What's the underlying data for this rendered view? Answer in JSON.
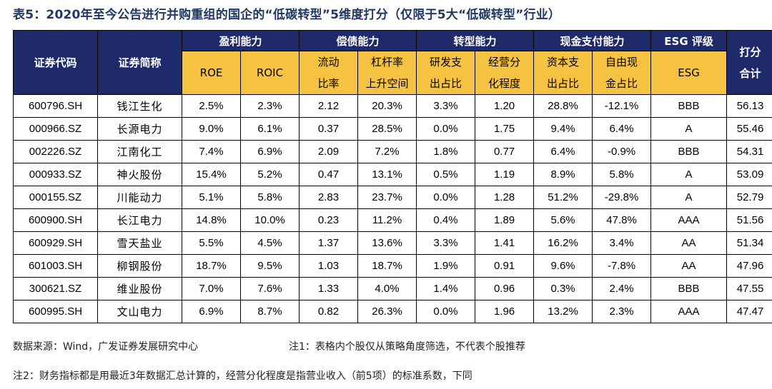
{
  "title": "表5：2020年至今公告进行并购重组的国企的“低碳转型”5维度打分（仅限于5大“低碳转型”行业）",
  "header": {
    "code": "证券代码",
    "name": "证券简称",
    "groups": [
      "盈利能力",
      "偿债能力",
      "转型能力",
      "现金支付能力",
      "ESG 评级"
    ],
    "total_line1": "打分",
    "total_line2": "合计",
    "sub": [
      {
        "l1": "ROE",
        "l2": ""
      },
      {
        "l1": "ROIC",
        "l2": ""
      },
      {
        "l1": "流动",
        "l2": "比率"
      },
      {
        "l1": "杠杆率",
        "l2": "上升空间"
      },
      {
        "l1": "研发支",
        "l2": "出占比"
      },
      {
        "l1": "经营分",
        "l2": "化程度"
      },
      {
        "l1": "资本支",
        "l2": "出占比"
      },
      {
        "l1": "自由现",
        "l2": "金占比"
      },
      {
        "l1": "ESG",
        "l2": ""
      }
    ]
  },
  "rows": [
    [
      "600796.SH",
      "钱江生化",
      "2.5%",
      "2.3%",
      "2.12",
      "20.3%",
      "3.3%",
      "1.20",
      "28.8%",
      "-12.1%",
      "BBB",
      "56.13"
    ],
    [
      "000966.SZ",
      "长源电力",
      "9.0%",
      "6.1%",
      "0.37",
      "28.5%",
      "0.0%",
      "1.75",
      "9.4%",
      "6.4%",
      "A",
      "55.46"
    ],
    [
      "002226.SZ",
      "江南化工",
      "7.4%",
      "6.9%",
      "2.09",
      "7.2%",
      "1.8%",
      "0.77",
      "6.4%",
      "-0.9%",
      "BBB",
      "54.31"
    ],
    [
      "000933.SZ",
      "神火股份",
      "15.4%",
      "5.2%",
      "0.47",
      "13.1%",
      "0.5%",
      "1.19",
      "8.9%",
      "5.8%",
      "A",
      "53.09"
    ],
    [
      "000155.SZ",
      "川能动力",
      "5.1%",
      "5.8%",
      "2.83",
      "23.7%",
      "0.0%",
      "1.28",
      "51.2%",
      "-29.8%",
      "A",
      "52.79"
    ],
    [
      "600900.SH",
      "长江电力",
      "14.8%",
      "10.0%",
      "0.23",
      "11.2%",
      "0.4%",
      "1.89",
      "5.6%",
      "47.8%",
      "AAA",
      "51.56"
    ],
    [
      "600929.SH",
      "雪天盐业",
      "5.5%",
      "4.5%",
      "1.37",
      "13.6%",
      "3.3%",
      "1.41",
      "16.2%",
      "3.4%",
      "AA",
      "51.34"
    ],
    [
      "601003.SH",
      "柳钢股份",
      "18.7%",
      "9.5%",
      "1.03",
      "18.7%",
      "1.9%",
      "0.91",
      "9.6%",
      "-7.8%",
      "AA",
      "47.96"
    ],
    [
      "300621.SZ",
      "维业股份",
      "7.0%",
      "7.6%",
      "1.33",
      "4.0%",
      "1.4%",
      "0.96",
      "0.3%",
      "2.4%",
      "BBB",
      "47.55"
    ],
    [
      "600995.SH",
      "文山电力",
      "6.9%",
      "8.7%",
      "0.82",
      "26.3%",
      "0.0%",
      "1.96",
      "13.2%",
      "2.3%",
      "AAA",
      "47.47"
    ]
  ],
  "notes": {
    "source": "数据来源：Wind，广发证券发展研究中心",
    "note1": "注1：表格内个股仅从策略角度筛选，不代表个股推荐",
    "note2": "注2：财务指标都是用最近3年数据汇总计算的，经营分化程度是指营业收入（前5项）的标准系数，下同"
  },
  "colors": {
    "header_bg": "#1f2a6b",
    "subheader_bg": "#f5c242",
    "title": "#1f3864"
  }
}
